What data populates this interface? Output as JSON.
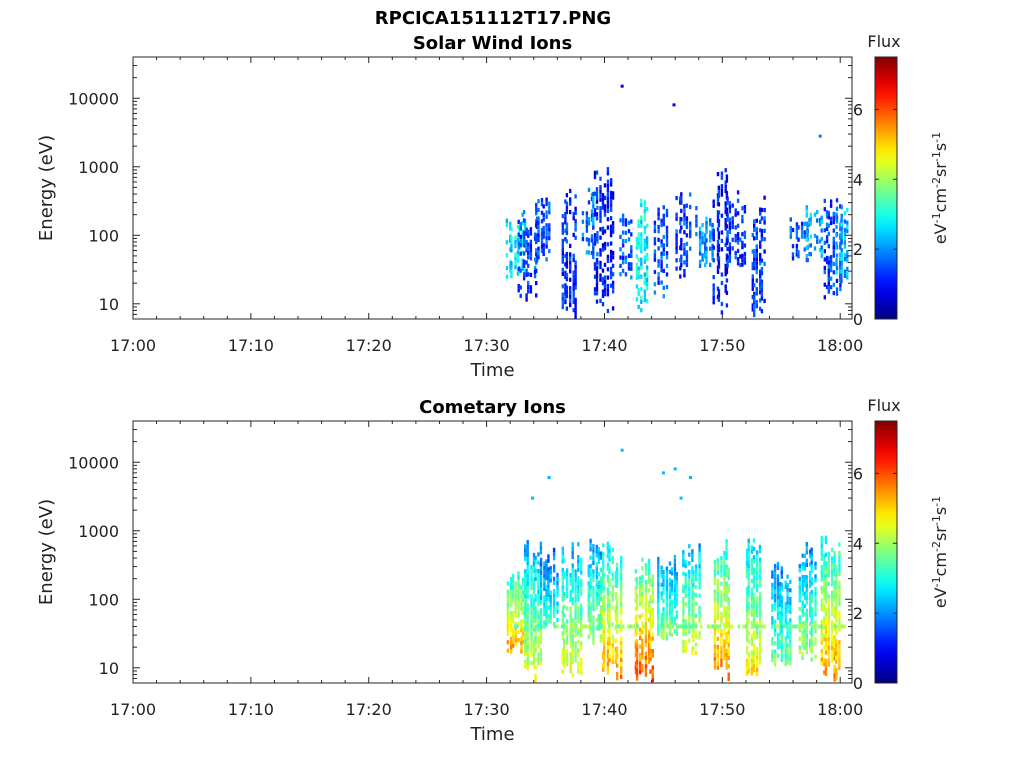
{
  "figure": {
    "title": "RPCICA151112T17.PNG",
    "colorbar_label": "Flux",
    "colorbar_unit_parts": [
      "eV",
      "-1",
      "cm",
      "-2",
      "sr",
      "-1",
      "s",
      "-1"
    ],
    "colormap": "jet"
  },
  "chart_data": [
    {
      "type": "heatmap",
      "title": "Solar Wind Ions",
      "xlabel": "Time",
      "ylabel": "Energy (eV)",
      "x_ticks": [
        "17:00",
        "17:10",
        "17:20",
        "17:30",
        "17:40",
        "17:50",
        "18:00"
      ],
      "x_range_minutes": [
        0,
        61
      ],
      "y_scale": "log",
      "y_ticks": [
        10,
        100,
        1000,
        10000
      ],
      "y_tick_labels": [
        "10",
        "100",
        "1000",
        "10000"
      ],
      "y_range": [
        6,
        40000
      ],
      "colorbar_ticks": [
        0,
        2,
        4,
        6
      ],
      "colorbar_range": [
        0,
        7.5
      ],
      "data_span_minutes": [
        32.3,
        60.5
      ],
      "activity_bursts": [
        {
          "t": 32.5,
          "e_min": 20,
          "e_max": 250,
          "level": 2.6
        },
        {
          "t": 33.5,
          "e_min": 10,
          "e_max": 300,
          "level": 1.5
        },
        {
          "t": 34.8,
          "e_min": 40,
          "e_max": 400,
          "level": 1.4
        },
        {
          "t": 37.0,
          "e_min": 6,
          "e_max": 700,
          "level": 1.2
        },
        {
          "t": 38.8,
          "e_min": 30,
          "e_max": 500,
          "level": 1.8
        },
        {
          "t": 40.0,
          "e_min": 6,
          "e_max": 1200,
          "level": 1.0
        },
        {
          "t": 41.8,
          "e_min": 20,
          "e_max": 300,
          "level": 1.6
        },
        {
          "t": 43.2,
          "e_min": 6,
          "e_max": 500,
          "level": 2.8
        },
        {
          "t": 44.8,
          "e_min": 10,
          "e_max": 300,
          "level": 1.5
        },
        {
          "t": 46.7,
          "e_min": 20,
          "e_max": 700,
          "level": 1.4
        },
        {
          "t": 48.5,
          "e_min": 30,
          "e_max": 300,
          "level": 2.0
        },
        {
          "t": 49.9,
          "e_min": 6,
          "e_max": 1000,
          "level": 1.0
        },
        {
          "t": 51.2,
          "e_min": 30,
          "e_max": 500,
          "level": 1.3
        },
        {
          "t": 53.1,
          "e_min": 6,
          "e_max": 400,
          "level": 1.4
        },
        {
          "t": 56.5,
          "e_min": 40,
          "e_max": 200,
          "level": 1.6
        },
        {
          "t": 57.8,
          "e_min": 40,
          "e_max": 300,
          "level": 2.2
        },
        {
          "t": 59.4,
          "e_min": 10,
          "e_max": 500,
          "level": 1.4
        },
        {
          "t": 60.2,
          "e_min": 20,
          "e_max": 350,
          "level": 2.2
        }
      ],
      "isolated_points": [
        {
          "t": 41.5,
          "e": 15000,
          "level": 0.8
        },
        {
          "t": 45.9,
          "e": 8000,
          "level": 0.8
        },
        {
          "t": 58.3,
          "e": 2800,
          "level": 1.8
        }
      ]
    },
    {
      "type": "heatmap",
      "title": "Cometary Ions",
      "xlabel": "Time",
      "ylabel": "Energy (eV)",
      "x_ticks": [
        "17:00",
        "17:10",
        "17:20",
        "17:30",
        "17:40",
        "17:50",
        "18:00"
      ],
      "x_range_minutes": [
        0,
        61
      ],
      "y_scale": "log",
      "y_ticks": [
        10,
        100,
        1000,
        10000
      ],
      "y_tick_labels": [
        "10",
        "100",
        "1000",
        "10000"
      ],
      "y_range": [
        6,
        40000
      ],
      "colorbar_ticks": [
        0,
        2,
        4,
        6
      ],
      "colorbar_range": [
        0,
        7.5
      ],
      "data_span_minutes": [
        32.3,
        60.5
      ],
      "activity_bursts": [
        {
          "t": 32.6,
          "e_min": 15,
          "e_max": 350,
          "level": 5.6
        },
        {
          "t": 34.0,
          "e_min": 6,
          "e_max": 800,
          "level": 4.6
        },
        {
          "t": 35.3,
          "e_min": 30,
          "e_max": 600,
          "level": 3.4
        },
        {
          "t": 37.2,
          "e_min": 6,
          "e_max": 700,
          "level": 4.8
        },
        {
          "t": 39.2,
          "e_min": 20,
          "e_max": 900,
          "level": 4.2
        },
        {
          "t": 40.6,
          "e_min": 6,
          "e_max": 800,
          "level": 5.6
        },
        {
          "t": 43.4,
          "e_min": 6,
          "e_max": 600,
          "level": 6.2
        },
        {
          "t": 45.4,
          "e_min": 20,
          "e_max": 500,
          "level": 4.0
        },
        {
          "t": 47.4,
          "e_min": 15,
          "e_max": 800,
          "level": 4.6
        },
        {
          "t": 50.0,
          "e_min": 6,
          "e_max": 1000,
          "level": 5.8
        },
        {
          "t": 52.6,
          "e_min": 6,
          "e_max": 1100,
          "level": 5.0
        },
        {
          "t": 55.0,
          "e_min": 10,
          "e_max": 400,
          "level": 3.8
        },
        {
          "t": 57.2,
          "e_min": 10,
          "e_max": 700,
          "level": 4.2
        },
        {
          "t": 59.2,
          "e_min": 6,
          "e_max": 1200,
          "level": 5.6
        }
      ],
      "isolated_points": [
        {
          "t": 41.5,
          "e": 15000,
          "level": 2.3
        },
        {
          "t": 35.3,
          "e": 6000,
          "level": 2.3
        },
        {
          "t": 45.0,
          "e": 7000,
          "level": 2.3
        },
        {
          "t": 46.0,
          "e": 8000,
          "level": 2.3
        },
        {
          "t": 47.3,
          "e": 6000,
          "level": 2.3
        },
        {
          "t": 46.5,
          "e": 3000,
          "level": 2.3
        },
        {
          "t": 33.9,
          "e": 3000,
          "level": 2.3
        }
      ]
    }
  ]
}
